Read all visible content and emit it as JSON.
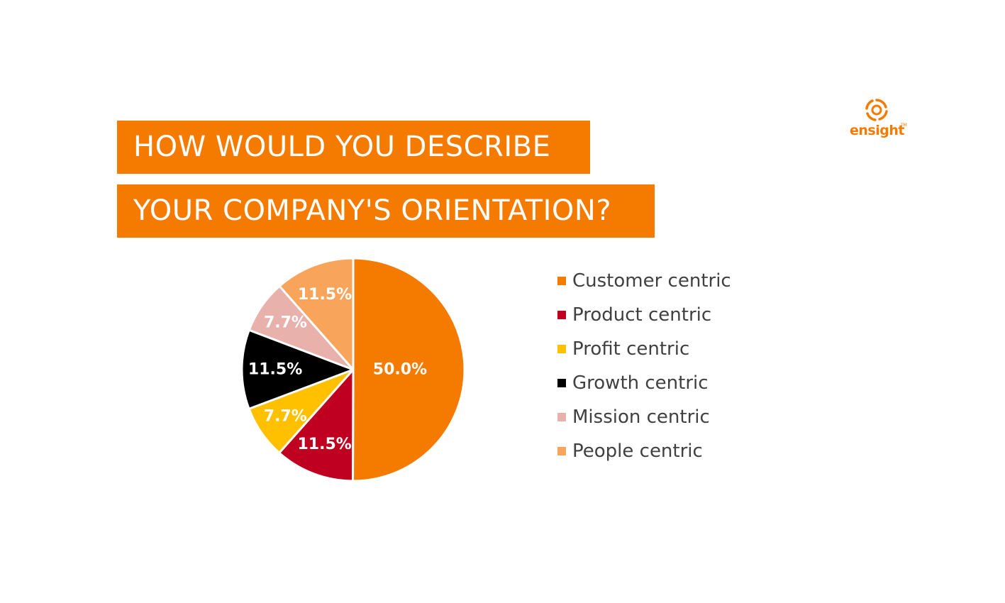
{
  "title": {
    "line1": "HOW WOULD YOU DESCRIBE",
    "line2": "YOUR COMPANY'S ORIENTATION?"
  },
  "logo": {
    "text": "ensight",
    "tm": "TM",
    "icon": "ensight-swirl-logo-icon",
    "color": "#F57B00"
  },
  "chart_data": {
    "type": "pie",
    "title": "HOW WOULD YOU DESCRIBE YOUR COMPANY'S ORIENTATION?",
    "legend_position": "right",
    "start_angle": "12 o'clock, clockwise",
    "slices": [
      {
        "label": "Customer centric",
        "value": 50.0,
        "display": "50.0%",
        "color": "#F57B00",
        "label_color": "#ffffff"
      },
      {
        "label": "Product centric",
        "value": 11.5,
        "display": "11.5%",
        "color": "#BF0020",
        "label_color": "#ffffff"
      },
      {
        "label": "Profit centric",
        "value": 7.7,
        "display": "7.7%",
        "color": "#FFC000",
        "label_color": "#ffffff"
      },
      {
        "label": "Growth centric",
        "value": 11.5,
        "display": "11.5%",
        "color": "#000000",
        "label_color": "#ffffff"
      },
      {
        "label": "Mission centric",
        "value": 7.7,
        "display": "7.7%",
        "color": "#E8B1AB",
        "label_color": "#ffffff"
      },
      {
        "label": "People centric",
        "value": 11.5,
        "display": "11.5%",
        "color": "#F8A55B",
        "label_color": "#ffffff"
      }
    ]
  }
}
